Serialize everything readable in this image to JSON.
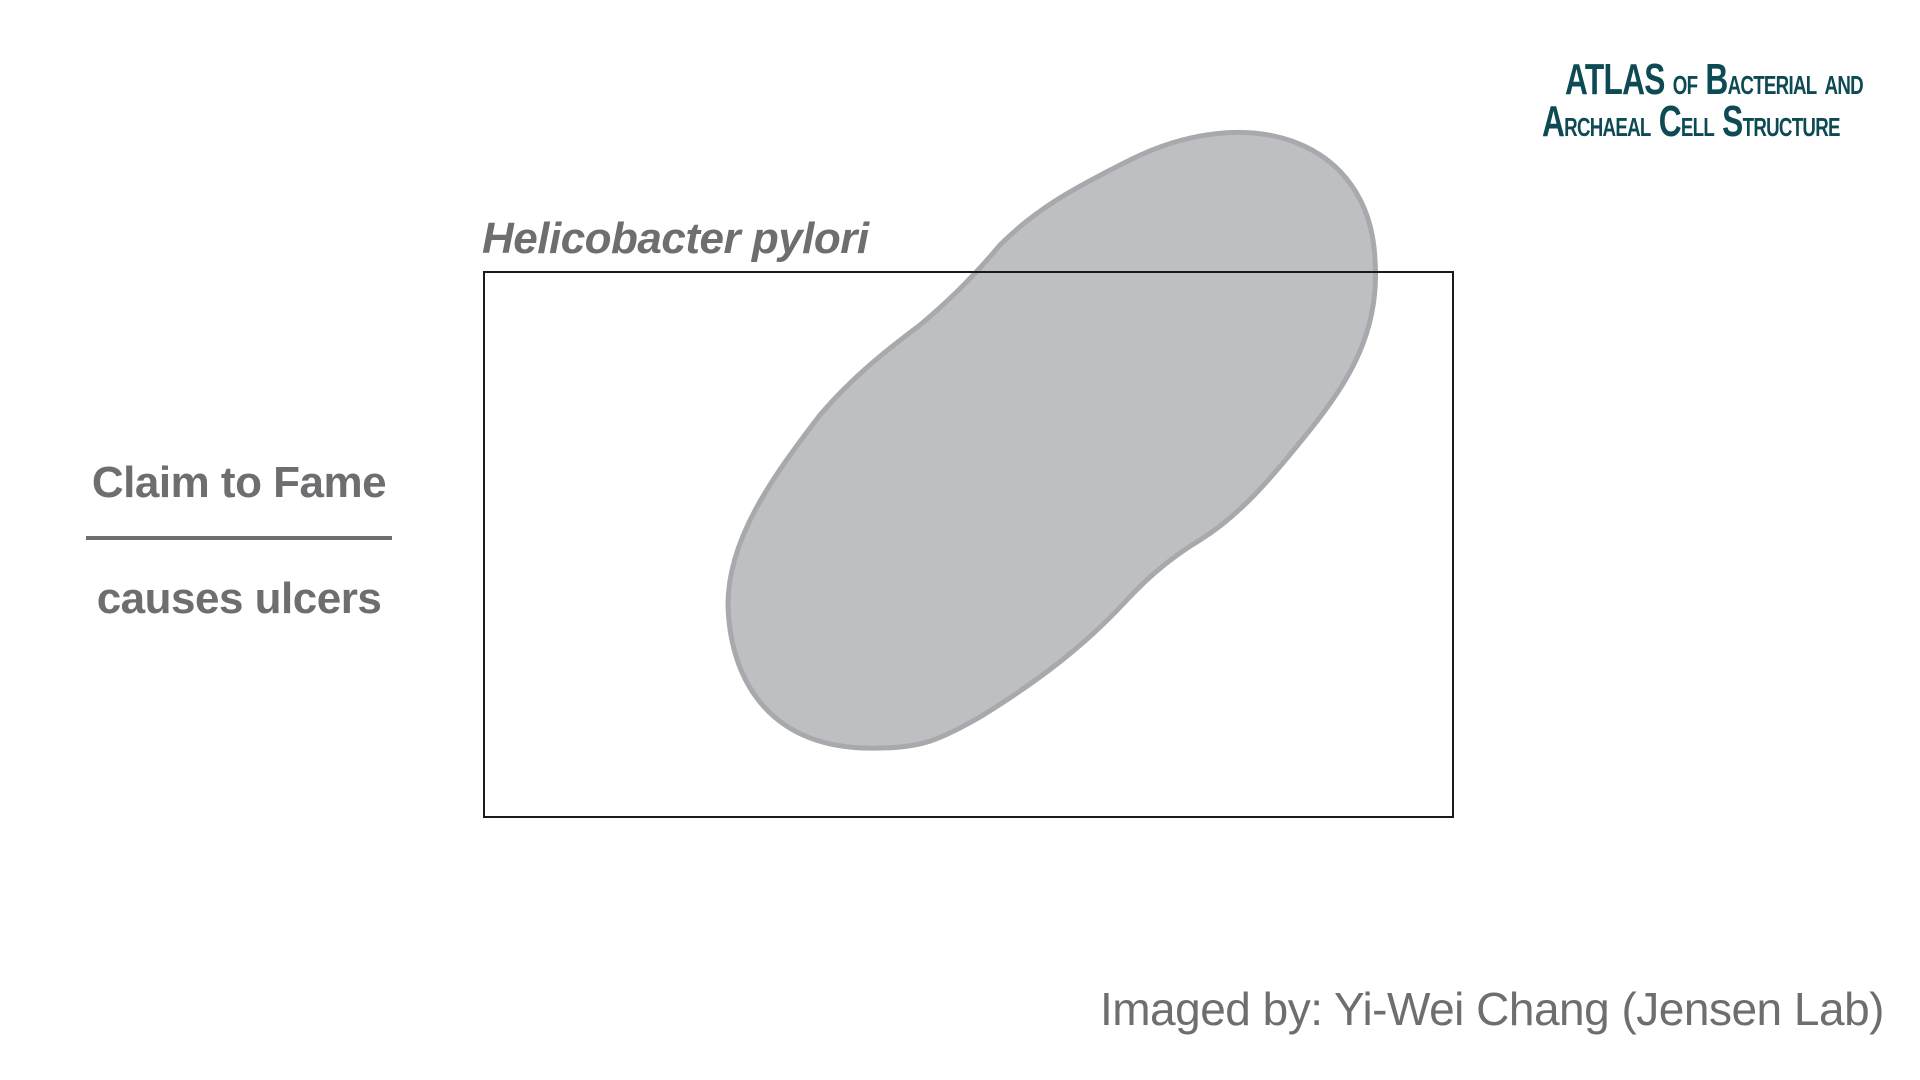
{
  "logo": {
    "line1_main_a": "A",
    "line1_main_b": "TLAS",
    "line1_of": "OF",
    "line1_bacterial_a": "B",
    "line1_bacterial_b": "ACTERIAL",
    "line1_and": "AND",
    "line2_archaeal_a": "A",
    "line2_archaeal_b": "RCHAEAL",
    "line2_cell_a": "C",
    "line2_cell_b": "ELL",
    "line2_structure_a": "S",
    "line2_structure_b": "TRUCTURE",
    "color": "#0d4a53"
  },
  "species_name": "Helicobacter pylori",
  "claim": {
    "title": "Claim to Fame",
    "text": "causes ulcers"
  },
  "credit": "Imaged by: Yi-Wei Chang (Jensen Lab)",
  "colors": {
    "text_gray": "#6e6e70",
    "cell_fill": "#bebfc2",
    "cell_stroke": "#a8a9ac",
    "frame": "#1a1a1a"
  }
}
